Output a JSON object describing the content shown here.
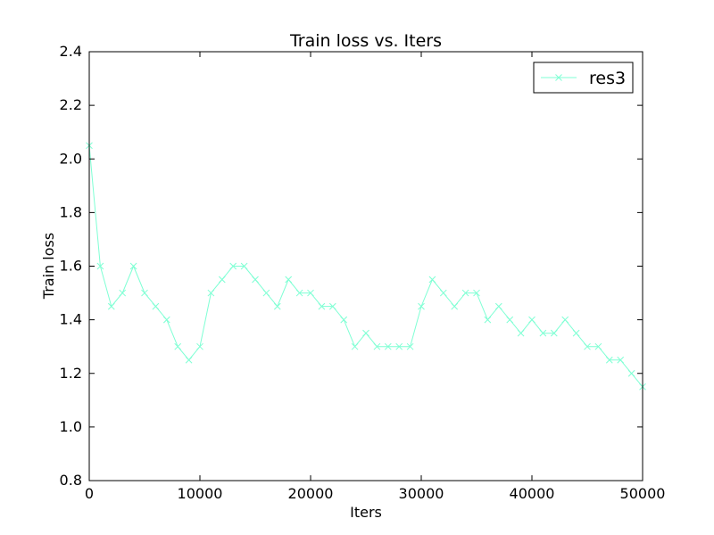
{
  "chart_data": {
    "type": "line",
    "title": "Train loss  vs. Iters",
    "xlabel": "Iters",
    "ylabel": "Train loss",
    "xlim": [
      0,
      50000
    ],
    "ylim": [
      0.8,
      2.4
    ],
    "xticks": [
      0,
      10000,
      20000,
      30000,
      40000,
      50000
    ],
    "xtick_labels": [
      "0",
      "10000",
      "20000",
      "30000",
      "40000",
      "50000"
    ],
    "yticks": [
      0.8,
      1.0,
      1.2,
      1.4,
      1.6,
      1.8,
      2.0,
      2.2,
      2.4
    ],
    "ytick_labels": [
      "0.8",
      "1.0",
      "1.2",
      "1.4",
      "1.6",
      "1.8",
      "2.0",
      "2.2",
      "2.4"
    ],
    "grid": false,
    "legend_position": "top-right",
    "marker": "x",
    "series": [
      {
        "name": "res3",
        "color": "#7fffd4",
        "x": [
          0,
          1000,
          2000,
          3000,
          4000,
          5000,
          6000,
          7000,
          8000,
          9000,
          10000,
          11000,
          12000,
          13000,
          14000,
          15000,
          16000,
          17000,
          18000,
          19000,
          20000,
          21000,
          22000,
          23000,
          24000,
          25000,
          26000,
          27000,
          28000,
          29000,
          30000,
          31000,
          32000,
          33000,
          34000,
          35000,
          36000,
          37000,
          38000,
          39000,
          40000,
          41000,
          42000,
          43000,
          44000,
          45000,
          46000,
          47000,
          48000,
          49000,
          50000
        ],
        "values": [
          2.05,
          1.6,
          1.45,
          1.5,
          1.6,
          1.5,
          1.45,
          1.4,
          1.3,
          1.25,
          1.3,
          1.5,
          1.55,
          1.6,
          1.6,
          1.55,
          1.5,
          1.45,
          1.55,
          1.5,
          1.5,
          1.45,
          1.45,
          1.4,
          1.3,
          1.35,
          1.3,
          1.3,
          1.3,
          1.3,
          1.45,
          1.55,
          1.5,
          1.45,
          1.5,
          1.5,
          1.4,
          1.45,
          1.4,
          1.35,
          1.4,
          1.35,
          1.35,
          1.4,
          1.35,
          1.3,
          1.3,
          1.25,
          1.25,
          1.2,
          1.15
        ]
      }
    ]
  }
}
